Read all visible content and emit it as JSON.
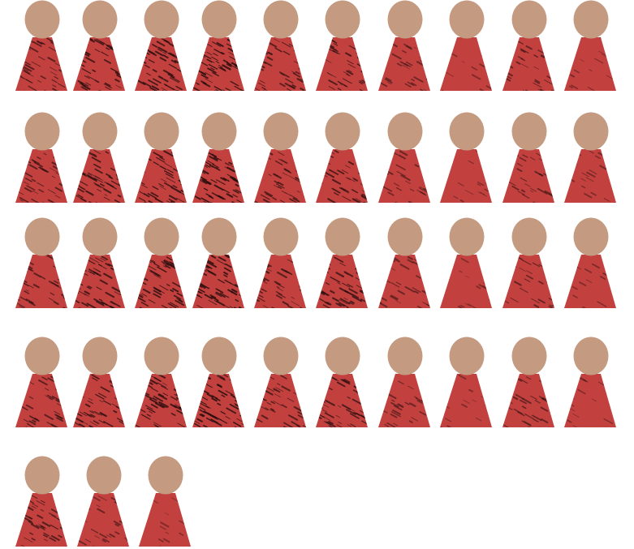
{
  "colors": {
    "background": "#ffffff",
    "head": "#c49a81",
    "body": "#c2413f",
    "texture": "#2a0f0e"
  },
  "figure": {
    "icon": "person-figure-icon",
    "head_shape": "ellipse",
    "body_shape": "trapezoid"
  },
  "rows": [
    {
      "name": "row-1",
      "textures": [
        0.55,
        0.75,
        0.8,
        0.9,
        0.6,
        0.7,
        0.35,
        0.12,
        0.4,
        0.18
      ]
    },
    {
      "name": "row-2",
      "textures": [
        0.55,
        0.75,
        0.8,
        0.9,
        0.6,
        0.7,
        0.35,
        0.12,
        0.4,
        0.18
      ]
    },
    {
      "name": "row-3",
      "textures": [
        0.55,
        0.75,
        0.8,
        0.9,
        0.6,
        0.7,
        0.35,
        0.12,
        0.4,
        0.18
      ]
    },
    {
      "name": "row-4",
      "textures": [
        0.55,
        0.75,
        0.8,
        0.9,
        0.6,
        0.7,
        0.35,
        0.12,
        0.4,
        0.18
      ]
    },
    {
      "name": "row-5",
      "textures": [
        0.6,
        0.35,
        0.12
      ]
    }
  ]
}
